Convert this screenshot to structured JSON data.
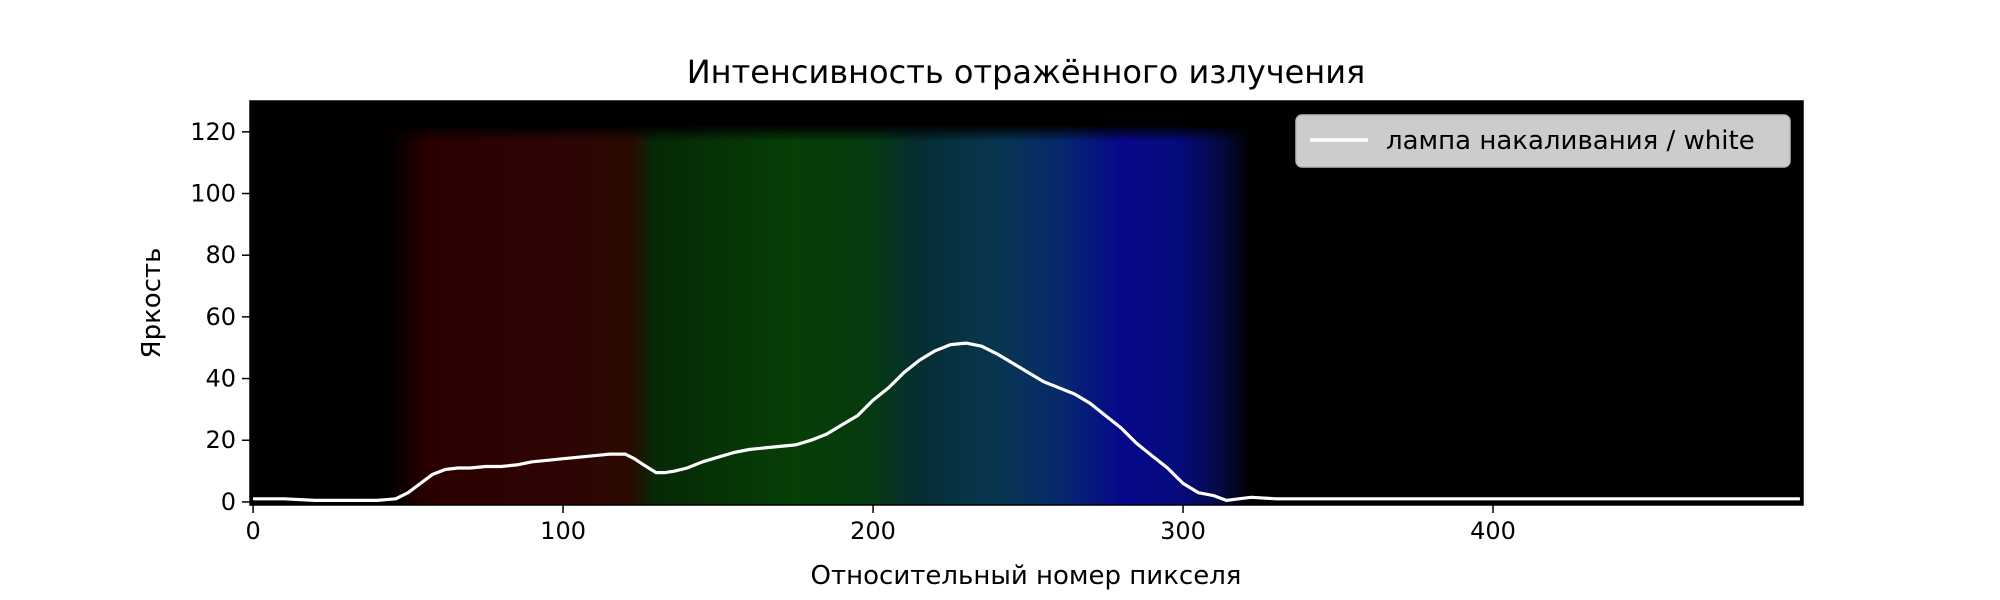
{
  "chart_data": {
    "type": "line",
    "title": "Интенсивность отражённого излучения",
    "xlabel": "Относительный номер пикселя",
    "ylabel": "Яркость",
    "xlim": [
      -1,
      500
    ],
    "ylim": [
      -1,
      130
    ],
    "xticks": [
      0,
      100,
      200,
      300,
      400
    ],
    "yticks": [
      0,
      20,
      40,
      60,
      80,
      100,
      120
    ],
    "legend_position": "upper right",
    "background": "spectrum image (black – red – green – blue – black) behind the plot",
    "series": [
      {
        "name": "лампа накаливания / white",
        "color": "#ffffff",
        "x": [
          0,
          10,
          20,
          30,
          40,
          46,
          50,
          54,
          58,
          62,
          66,
          70,
          75,
          80,
          85,
          90,
          95,
          100,
          105,
          110,
          115,
          120,
          123,
          126,
          130,
          133,
          136,
          140,
          145,
          150,
          155,
          160,
          165,
          170,
          175,
          180,
          185,
          190,
          195,
          200,
          205,
          210,
          215,
          220,
          225,
          230,
          235,
          240,
          245,
          250,
          255,
          260,
          265,
          270,
          275,
          280,
          285,
          290,
          295,
          300,
          305,
          310,
          314,
          318,
          322,
          330,
          350,
          400,
          450,
          499
        ],
        "y": [
          1,
          1,
          0.5,
          0.5,
          0.5,
          1,
          3,
          6,
          9,
          10.5,
          11,
          11,
          11.5,
          11.5,
          12,
          13,
          13.5,
          14,
          14.5,
          15,
          15.5,
          15.5,
          14,
          12,
          9.5,
          9.5,
          10,
          11,
          13,
          14.5,
          16,
          17,
          17.5,
          18,
          18.5,
          20,
          22,
          25,
          28,
          33,
          37,
          42,
          46,
          49,
          51,
          51.5,
          50.5,
          48,
          45,
          42,
          39,
          37,
          35,
          32,
          28,
          24,
          19,
          15,
          11,
          6,
          3,
          2,
          0.5,
          1,
          1.5,
          1,
          1,
          1,
          1,
          1
        ]
      }
    ]
  }
}
